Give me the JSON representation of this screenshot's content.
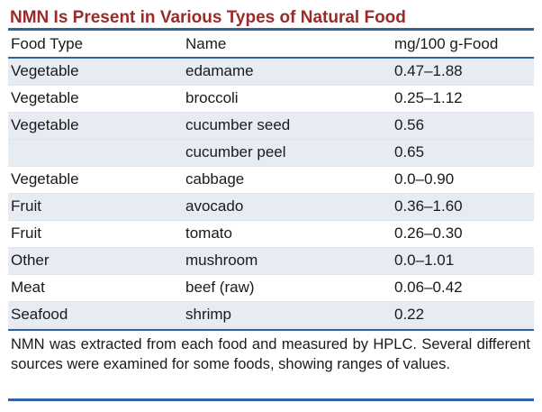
{
  "title": "NMN Is Present in Various Types of Natural Food",
  "columns": [
    "Food Type",
    "Name",
    "mg/100 g-Food"
  ],
  "rows": [
    {
      "food_type": "Vegetable",
      "name": "edamame",
      "value": "0.47–1.88"
    },
    {
      "food_type": "Vegetable",
      "name": "broccoli",
      "value": "0.25–1.12"
    },
    {
      "food_type": "Vegetable",
      "name": "cucumber seed",
      "value": "0.56"
    },
    {
      "food_type": "",
      "name": "cucumber peel",
      "value": "0.65"
    },
    {
      "food_type": "Vegetable",
      "name": "cabbage",
      "value": "0.0–0.90"
    },
    {
      "food_type": "Fruit",
      "name": "avocado",
      "value": "0.36–1.60"
    },
    {
      "food_type": "Fruit",
      "name": "tomato",
      "value": "0.26–0.30"
    },
    {
      "food_type": "Other",
      "name": "mushroom",
      "value": "0.0–1.01"
    },
    {
      "food_type": "Meat",
      "name": "beef (raw)",
      "value": "0.06–0.42"
    },
    {
      "food_type": "Seafood",
      "name": "shrimp",
      "value": "0.22"
    }
  ],
  "footnote": "NMN was extracted from each food and measured by HPLC. Several different sources were examined for some foods, showing ranges of values.",
  "colors": {
    "title": "#9b2a2a",
    "rule": "#2e63a6",
    "row_shade": "#e7ecf3"
  }
}
